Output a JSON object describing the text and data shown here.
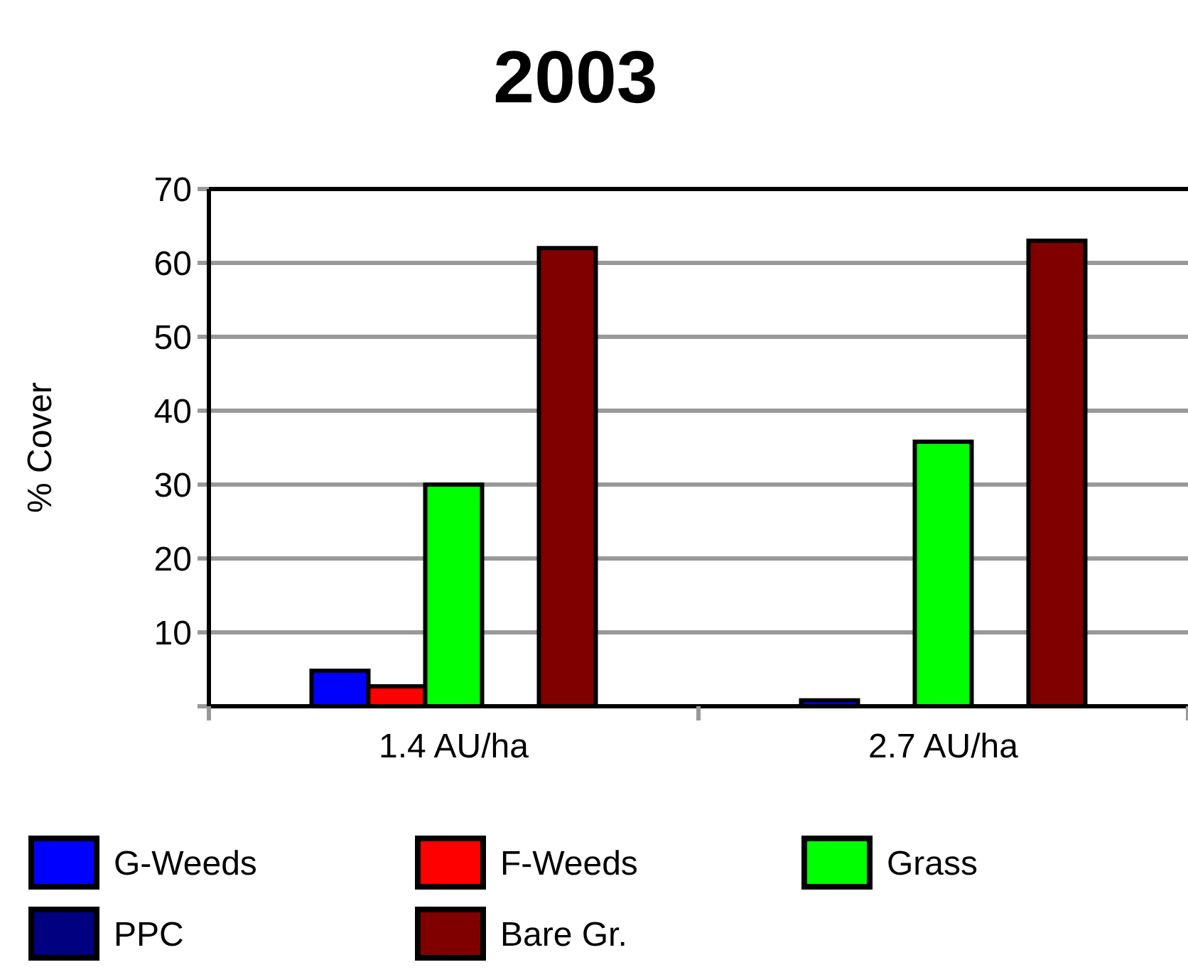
{
  "chart_data": {
    "type": "bar",
    "title": "2003",
    "ylabel": "% Cover",
    "categories": [
      "1.4 AU/ha",
      "2.7 AU/ha"
    ],
    "series": [
      {
        "name": "G-Weeds",
        "color": "#0000ff",
        "values": [
          4.8,
          0.8
        ]
      },
      {
        "name": "F-Weeds",
        "color": "#ff0000",
        "values": [
          2.7,
          0
        ]
      },
      {
        "name": "Grass",
        "color": "#00ff00",
        "values": [
          30,
          35.8
        ]
      },
      {
        "name": "PPC",
        "color": "#000080",
        "values": [
          0,
          0
        ]
      },
      {
        "name": "Bare Gr.",
        "color": "#800000",
        "values": [
          62,
          63
        ]
      }
    ],
    "ylim": [
      0,
      70
    ],
    "yticks": [
      {
        "value": 0,
        "label": null
      },
      10,
      20,
      30,
      40,
      50,
      60,
      70
    ],
    "grid": "y",
    "legend": "bottom"
  }
}
